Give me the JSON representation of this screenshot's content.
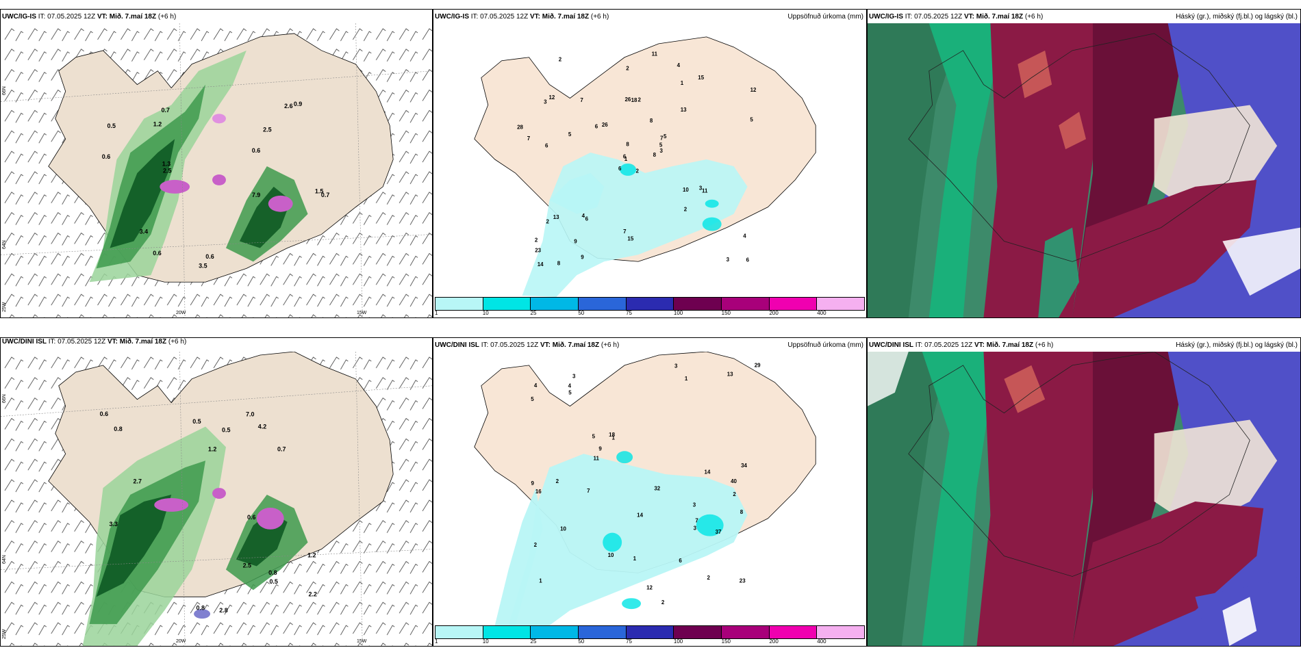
{
  "panels": [
    {
      "model": "UWC/IG-IS",
      "it_label": "IT:",
      "it": "07.05.2025 12Z",
      "vt_label": "VT:",
      "vt": "Mið. 7.maí 18Z",
      "lead": "(+6 h)",
      "right": ""
    },
    {
      "model": "UWC/IG-IS",
      "it_label": "IT:",
      "it": "07.05.2025 12Z",
      "vt_label": "VT:",
      "vt": "Mið. 7.maí 18Z",
      "lead": "(+6 h)",
      "right": "Uppsöfnuð úrkoma (mm)"
    },
    {
      "model": "UWC/IG-IS",
      "it_label": "IT:",
      "it": "07.05.2025 12Z",
      "vt_label": "VT:",
      "vt": "Mið. 7.maí 18Z",
      "lead": "(+6 h)",
      "right": "Háský (gr.), miðský (fj.bl.) og lágský (bl.)"
    },
    {
      "model": "UWC/DINI ISL",
      "it_label": "IT:",
      "it": "07.05.2025 12Z",
      "vt_label": "VT:",
      "vt": "Mið. 7.maí 18Z",
      "lead": "(+6 h)",
      "right": ""
    },
    {
      "model": "UWC/DINI ISL",
      "it_label": "IT:",
      "it": "07.05.2025 12Z",
      "vt_label": "VT:",
      "vt": "Mið. 7.maí 18Z",
      "lead": "(+6 h)",
      "right": "Uppsöfnuð úrkoma (mm)"
    },
    {
      "model": "UWC/DINI ISL",
      "it_label": "IT:",
      "it": "07.05.2025 12Z",
      "vt_label": "VT:",
      "vt": "Mið. 7.maí 18Z",
      "lead": "(+6 h)",
      "right": "Háský (gr.), miðský (fj.bl.) og lágský (bl.)"
    }
  ],
  "grid_labels": {
    "lat66": "66N",
    "lat64": "64N",
    "lon20": "20W",
    "lon15": "15W",
    "lon25": "25W"
  },
  "colorbar": {
    "colors": [
      "#b8f6f6",
      "#00e5e5",
      "#00b8e6",
      "#2a66d9",
      "#2b2bb0",
      "#6e0050",
      "#a8007a",
      "#f000b0",
      "#f5b0f0"
    ],
    "labels": [
      "1",
      "10",
      "25",
      "50",
      "75",
      "100",
      "150",
      "200",
      "400"
    ]
  },
  "precip_top_values": [
    "2",
    "3",
    "1",
    "2",
    "7",
    "6",
    "4",
    "2",
    "1",
    "8",
    "2",
    "6",
    "6",
    "12",
    "6",
    "13",
    "8",
    "26",
    "8",
    "13",
    "26",
    "23",
    "9",
    "18",
    "5",
    "11",
    "12",
    "2",
    "7",
    "10",
    "5",
    "6",
    "7",
    "8",
    "7",
    "15",
    "4",
    "3",
    "4",
    "3",
    "11",
    "6",
    "5",
    "2",
    "9",
    "28",
    "5",
    "14",
    "15",
    "3",
    "2"
  ],
  "precip_bottom_values": [
    "3",
    "2",
    "1",
    "3",
    "1",
    "2",
    "2",
    "1",
    "5",
    "2",
    "5",
    "9",
    "4",
    "23",
    "10",
    "34",
    "14",
    "32",
    "18",
    "10",
    "29",
    "13",
    "11",
    "8",
    "3",
    "4",
    "7",
    "16",
    "5",
    "14",
    "12",
    "6",
    "9",
    "7",
    "40",
    "37",
    "3",
    "2",
    "1"
  ],
  "precip6_top_values": [
    "0.5",
    "1.2",
    "0.6",
    "0.6",
    "2.6",
    "3.5",
    "7.9",
    "2.5",
    "0.9",
    "0.7",
    "1.5",
    "0.7",
    "2.5",
    "3.4",
    "0.6",
    "0.6",
    "1.3"
  ],
  "precip6_bottom_values": [
    "1.2",
    "0.5",
    "0.6",
    "0.7",
    "0.8",
    "0.5",
    "2.8",
    "7.0",
    "2.7",
    "3.3",
    "0.8",
    "0.5",
    "0.6",
    "0.8",
    "2.2",
    "4.2",
    "1.2",
    "2.5"
  ]
}
